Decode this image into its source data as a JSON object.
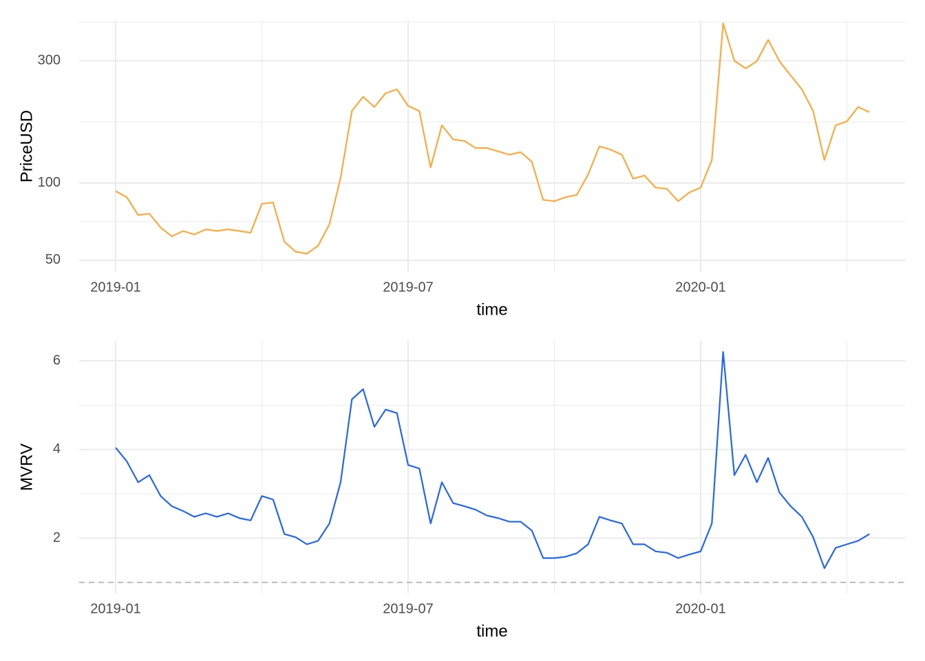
{
  "chart_data": [
    {
      "type": "line",
      "log": true,
      "xlabel": "time",
      "ylabel": "PriceUSD",
      "color": "#ffa83d",
      "categories": [
        "2019-01",
        null,
        null,
        null,
        null,
        null,
        null,
        null,
        null,
        null,
        null,
        null,
        null,
        null,
        null,
        null,
        null,
        null,
        null,
        null,
        null,
        null,
        null,
        null,
        null,
        null,
        "2019-07",
        null,
        null,
        null,
        null,
        null,
        null,
        null,
        null,
        null,
        null,
        null,
        null,
        null,
        null,
        null,
        null,
        null,
        null,
        null,
        null,
        null,
        null,
        null,
        null,
        null,
        "2020-01",
        null,
        null,
        null,
        null,
        null,
        null,
        null,
        null,
        null,
        null,
        null,
        null,
        null,
        null,
        null
      ],
      "values": [
        93,
        88,
        75,
        76,
        67,
        62,
        65,
        63,
        66,
        65,
        66,
        65,
        64,
        83,
        84,
        59,
        54,
        53,
        57,
        69,
        105,
        191,
        217,
        198,
        224,
        232,
        200,
        191,
        115,
        168,
        148,
        146,
        137,
        137,
        133,
        129,
        132,
        121,
        86,
        85,
        88,
        90,
        108,
        139,
        135,
        129,
        104,
        107,
        96,
        95,
        85,
        92,
        96,
        123,
        420,
        300,
        280,
        299,
        362,
        299,
        263,
        232,
        191,
        123,
        168,
        174,
        198,
        189
      ],
      "ylim": [
        45,
        430
      ],
      "yticks": [
        50,
        100,
        300
      ],
      "grid": true
    },
    {
      "type": "line",
      "log": false,
      "xlabel": "time",
      "ylabel": "MVRV",
      "color": "#2166ef",
      "hline": 1,
      "categories": [
        "2019-01",
        null,
        null,
        null,
        null,
        null,
        null,
        null,
        null,
        null,
        null,
        null,
        null,
        null,
        null,
        null,
        null,
        null,
        null,
        null,
        null,
        null,
        null,
        null,
        null,
        null,
        "2019-07",
        null,
        null,
        null,
        null,
        null,
        null,
        null,
        null,
        null,
        null,
        null,
        null,
        null,
        null,
        null,
        null,
        null,
        null,
        null,
        null,
        null,
        null,
        null,
        null,
        null,
        "2020-01",
        null,
        null,
        null,
        null,
        null,
        null,
        null,
        null,
        null,
        null,
        null,
        null,
        null,
        null,
        null
      ],
      "values": [
        4.04,
        3.73,
        3.26,
        3.42,
        2.95,
        2.72,
        2.61,
        2.48,
        2.56,
        2.48,
        2.56,
        2.45,
        2.4,
        2.95,
        2.87,
        2.09,
        2.02,
        1.86,
        1.94,
        2.33,
        3.26,
        5.13,
        5.36,
        4.51,
        4.9,
        4.82,
        3.65,
        3.57,
        2.33,
        3.26,
        2.79,
        2.72,
        2.64,
        2.51,
        2.45,
        2.37,
        2.37,
        2.17,
        1.55,
        1.55,
        1.58,
        1.66,
        1.86,
        2.48,
        2.4,
        2.33,
        1.86,
        1.86,
        1.7,
        1.67,
        1.55,
        1.63,
        1.7,
        2.33,
        6.2,
        3.42,
        3.88,
        3.26,
        3.81,
        3.03,
        2.72,
        2.48,
        2.02,
        1.32,
        1.78,
        1.86,
        1.94,
        2.09
      ],
      "ylim": [
        0.75,
        6.45
      ],
      "yticks": [
        2,
        4,
        6
      ],
      "grid": true
    }
  ]
}
